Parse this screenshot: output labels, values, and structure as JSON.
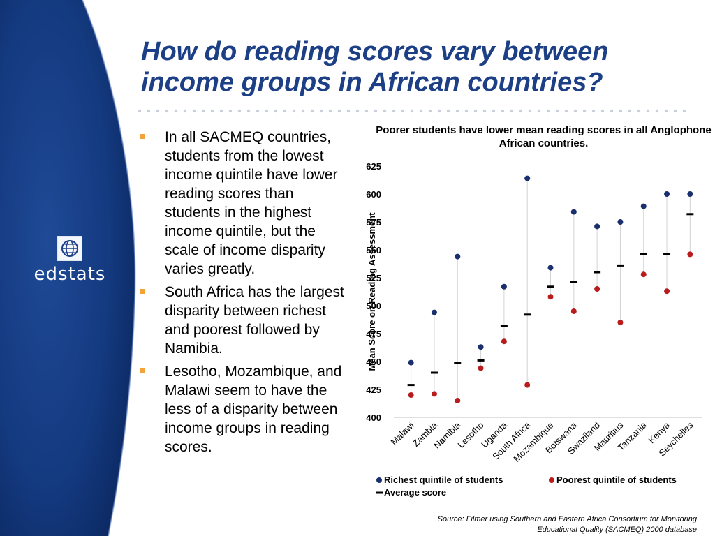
{
  "slide": {
    "title": "How do reading scores vary between income groups in African countries?",
    "brand": "edstats",
    "bullets": [
      "In all SACMEQ countries, students from the lowest income quintile have lower reading scores than students in the highest income quintile, but the scale of income disparity varies greatly.",
      "South Africa has the largest disparity between richest and poorest followed by Namibia.",
      "Lesotho, Mozambique, and Malawi seem to have the less of a disparity between income groups in reading scores."
    ],
    "source": "Source: Filmer using Southern and Eastern Africa Consortium for Monitoring Educational Quality (SACMEQ) 2000 database",
    "colors": {
      "title": "#1d3f86",
      "sidebar": "#0f2e6e",
      "bullet": "#f2a33a"
    }
  },
  "chart_data": {
    "type": "scatter",
    "title": "Poorer students have lower mean reading scores in all Anglophone African countries.",
    "ylabel": "Mean Score on Reading Assessment",
    "xlabel": "",
    "ylim": [
      400,
      625
    ],
    "yticks": [
      400,
      425,
      450,
      475,
      500,
      525,
      550,
      575,
      600,
      625
    ],
    "grid": false,
    "categories": [
      "Malawi",
      "Zambia",
      "Namibia",
      "Lesotho",
      "Uganda",
      "South Africa",
      "Mozambique",
      "Botswana",
      "Swaziland",
      "Mauritius",
      "Tanzania",
      "Kenya",
      "Seychelles"
    ],
    "series": [
      {
        "name": "Richest quintile of students",
        "marker": "circle",
        "color": "#1b2f6e",
        "values": [
          449,
          494,
          544,
          463,
          517,
          614,
          534,
          584,
          571,
          575,
          589,
          600,
          600
        ]
      },
      {
        "name": "Poorest quintile of students",
        "marker": "circle",
        "color": "#b81c1c",
        "values": [
          420,
          421,
          415,
          444,
          468,
          429,
          508,
          495,
          515,
          485,
          528,
          513,
          546
        ]
      },
      {
        "name": "Average score",
        "marker": "dash",
        "color": "#000000",
        "values": [
          429,
          440,
          449,
          451,
          482,
          492,
          517,
          521,
          530,
          536,
          546,
          546,
          582
        ]
      }
    ],
    "legend_position": "bottom"
  }
}
